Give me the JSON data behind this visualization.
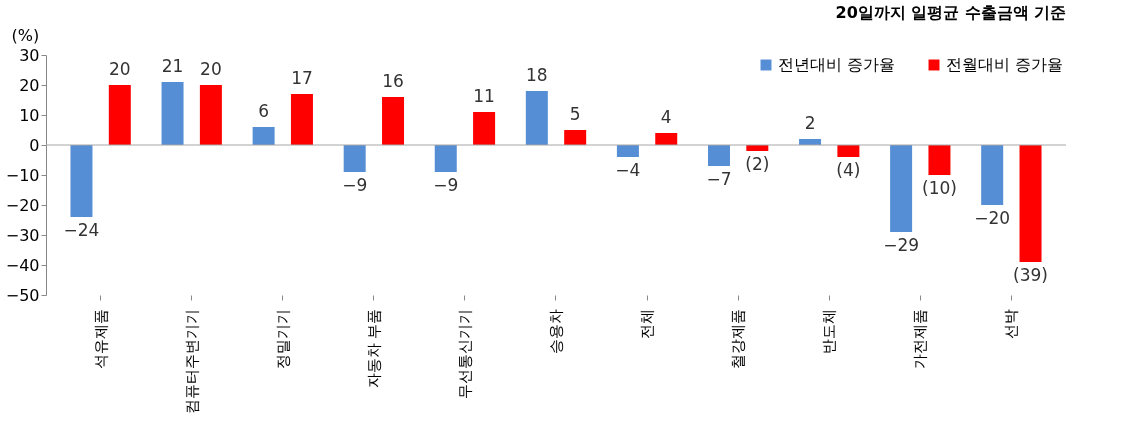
{
  "chart_data": {
    "type": "bar",
    "title": "20일까지 일평균 수출금액 기준",
    "ylabel": "(%)",
    "categories": [
      "석유제품",
      "컴퓨터주변기기",
      "정밀기기",
      "자동차 부품",
      "무선통신기기",
      "승용차",
      "전체",
      "철강제품",
      "반도체",
      "가전제품",
      "선박"
    ],
    "series": [
      {
        "name": "전년대비 증가율",
        "color": "#558ed5",
        "values": [
          -24,
          21,
          6,
          -9,
          -9,
          18,
          -4,
          -7,
          2,
          -29,
          -20
        ],
        "value_labels": [
          "−24",
          "21",
          "6",
          "−9",
          "−9",
          "18",
          "−4",
          "−7",
          "2",
          "−29",
          "−20"
        ]
      },
      {
        "name": "전월대비 증가율",
        "color": "#ff0000",
        "values": [
          20,
          20,
          17,
          16,
          11,
          5,
          4,
          -2,
          -4,
          -10,
          -39
        ],
        "value_labels": [
          "20",
          "20",
          "17",
          "16",
          "11",
          "5",
          "4",
          "(2)",
          "(4)",
          "(10)",
          "(39)"
        ]
      }
    ],
    "ylim": [
      -50,
      30
    ],
    "yticks": [
      -50,
      -40,
      -30,
      -20,
      -10,
      0,
      10,
      20,
      30
    ],
    "grid": false,
    "ref_lines": [
      {
        "axis": "y",
        "value": 0,
        "color": "#a6a6a6"
      }
    ],
    "legend": "top right"
  }
}
